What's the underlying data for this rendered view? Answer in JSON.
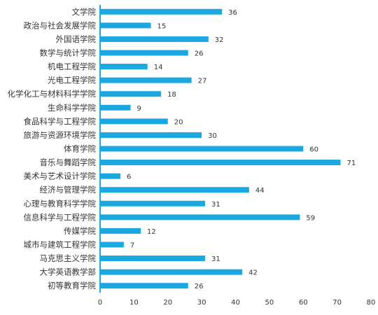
{
  "chart_data": {
    "type": "bar",
    "orientation": "horizontal",
    "categories": [
      "文学院",
      "政治与社会发展学院",
      "外国语学院",
      "数学与统计学院",
      "机电工程学院",
      "光电工程学院",
      "化学化工与材料科学学院",
      "生命科学学院",
      "食品科学与工程学院",
      "旅游与资源环境学院",
      "体育学院",
      "音乐与舞蹈学院",
      "美术与艺术设计学院",
      "经济与管理学院",
      "心理与教育科学学院",
      "信息科学与工程学院",
      "传媒学院",
      "城市与建筑工程学院",
      "马克思主义学院",
      "大学英语教学部",
      "初等教育学院"
    ],
    "values": [
      36,
      15,
      32,
      26,
      14,
      27,
      18,
      9,
      20,
      30,
      60,
      71,
      6,
      44,
      31,
      59,
      12,
      7,
      31,
      42,
      26
    ],
    "xlim": [
      0,
      80
    ],
    "xticks": [
      0,
      10,
      20,
      30,
      40,
      50,
      60,
      70,
      80
    ],
    "grid": false,
    "legend": "none",
    "bar_color": "#1ba8e0",
    "axis_color": "#1ba8e0",
    "text_color": "#333333",
    "data_labels": true
  }
}
